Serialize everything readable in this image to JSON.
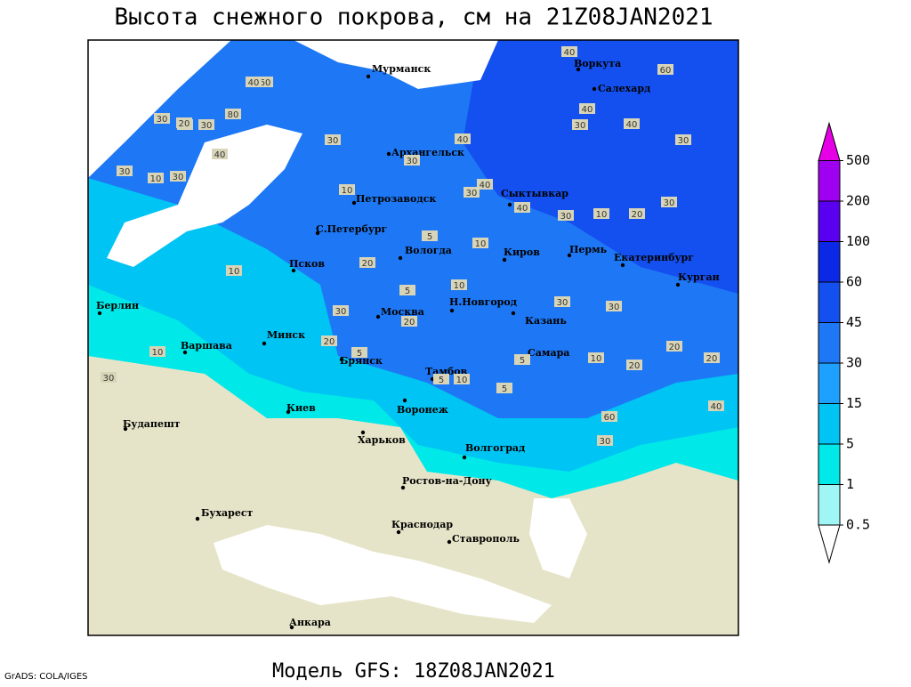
{
  "title": "Высота снежного покрова, см на 21Z08JAN2021",
  "subtitle": "Модель GFS: 18Z08JAN2021",
  "credit": "GrADS: COLA/IGES",
  "legend": {
    "levels": [
      0.5,
      1,
      5,
      15,
      30,
      45,
      60,
      100,
      200,
      500
    ],
    "colors": [
      "#ffffff",
      "#a0f5f5",
      "#00e8e8",
      "#00c4f4",
      "#1ea0ff",
      "#1e78f5",
      "#1450f0",
      "#0a28e6",
      "#5a00f0",
      "#a000f0",
      "#e600e6"
    ]
  },
  "cities": [
    "Мурманск",
    "Воркута",
    "Салехард",
    "Архангельск",
    "Сыктывкар",
    "Петрозаводск",
    "С.Петербург",
    "Вологда",
    "Киров",
    "Пермь",
    "Екатеринбург",
    "Курган",
    "Псков",
    "Москва",
    "Н.Новгород",
    "Казань",
    "Берлин",
    "Варшава",
    "Минск",
    "Брянск",
    "Тамбов",
    "Самара",
    "Киев",
    "Воронеж",
    "Харьков",
    "Будапешт",
    "Волгоград",
    "Ростов-на-Дону",
    "Бухарест",
    "Краснодар",
    "Ставрополь",
    "Анкара"
  ],
  "contour_labels": [
    60,
    80,
    40,
    30,
    30,
    40,
    30,
    10,
    30,
    30,
    20,
    30,
    40,
    60,
    40,
    30,
    40,
    30,
    40,
    30,
    40,
    40,
    30,
    30,
    10,
    20,
    30,
    20,
    5,
    10,
    5,
    10,
    30,
    10,
    20,
    30,
    30,
    20,
    20,
    10,
    30,
    10,
    20,
    5,
    5,
    10,
    5,
    5,
    10,
    20,
    60,
    40,
    30
  ]
}
